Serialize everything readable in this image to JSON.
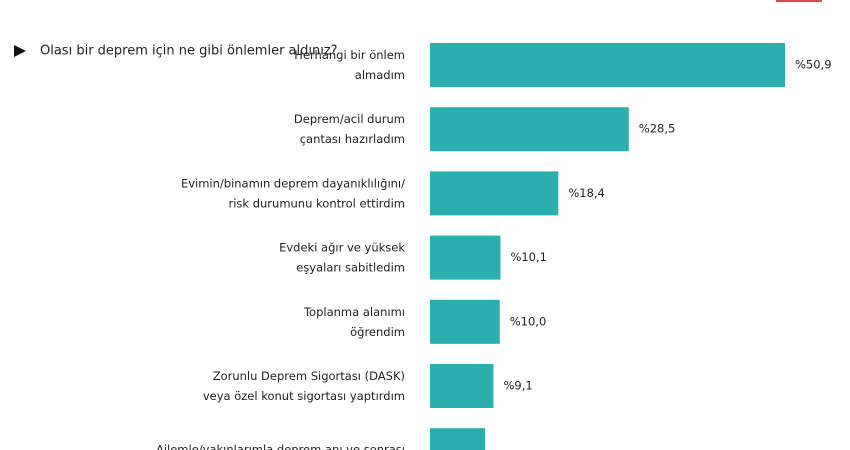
{
  "chart_data": {
    "type": "bar",
    "orientation": "horizontal",
    "subtitle": "Olası bir deprem için ne gibi önlemler aldınız?",
    "categories": [
      "Herhangi bir önlem\nalmadım",
      "Deprem/acil durum\nçantası hazırladım",
      "Evimin/binamın deprem dayanıklılığını/\nrisk durumunu kontrol ettirdim",
      "Evdeki ağır ve yüksek\neşyaları sabitledim",
      "Toplanma alanımı\nöğrendim",
      "Zorunlu Deprem  Sigortası (DASK)\nveya özel konut sigortası yaptırdım",
      "Ailemle/yakınlarımla deprem anı ve sonrası"
    ],
    "values": [
      50.9,
      28.5,
      18.4,
      10.1,
      10.0,
      9.1,
      7.9
    ],
    "value_labels": [
      "%50,9",
      "%28,5",
      "%18,4",
      "%10,1",
      "%10,0",
      "%9,1",
      null
    ],
    "color": "#2aaeae"
  }
}
